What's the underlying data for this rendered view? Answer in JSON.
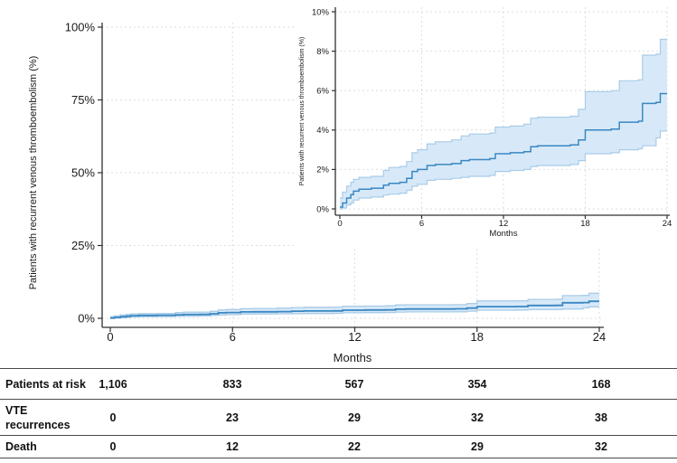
{
  "colors": {
    "curve_line": "#3a87c2",
    "ci_fill": "#d7e9f8",
    "ci_edge": "#a9cce8",
    "grid": "#dedede",
    "axis": "#303030",
    "text": "#1a1a1a",
    "table_border": "#4a4a4a"
  },
  "chart_data": [
    {
      "id": "main-chart",
      "type": "line",
      "subtype": "step-cumulative-incidence-with-95ci",
      "title": "",
      "xlabel": "Months",
      "ylabel": "Patients with recurrent venous thromboembolism (%)",
      "xlim": [
        0,
        24
      ],
      "ylim": [
        0,
        100
      ],
      "xticks": [
        0,
        6,
        12,
        18,
        24
      ],
      "yticks": [
        0,
        25,
        50,
        75,
        100
      ],
      "ytick_suffix": "%",
      "grid": "dashed",
      "legend": "none",
      "series": [
        {
          "name": "cumulative-incidence-estimate",
          "x": [
            0,
            0.2,
            0.5,
            0.8,
            1.0,
            1.4,
            2.3,
            3.2,
            3.6,
            4.4,
            4.9,
            5.3,
            5.7,
            6.4,
            7.0,
            8.2,
            8.9,
            9.5,
            11.0,
            11.4,
            12.5,
            13.5,
            14.0,
            14.5,
            16.9,
            17.5,
            18.0,
            19.9,
            20.5,
            21.9,
            22.2,
            23.2,
            23.5,
            24
          ],
          "y": [
            0.09,
            0.3,
            0.55,
            0.72,
            0.9,
            1.0,
            1.05,
            1.2,
            1.3,
            1.35,
            1.55,
            1.9,
            2.0,
            2.2,
            2.25,
            2.3,
            2.45,
            2.5,
            2.55,
            2.8,
            2.85,
            2.9,
            3.15,
            3.2,
            3.25,
            3.5,
            4.0,
            4.05,
            4.4,
            4.45,
            5.35,
            5.4,
            5.85,
            5.85
          ]
        },
        {
          "name": "ci-95-upper",
          "x": [
            0,
            0.2,
            0.5,
            0.8,
            1.0,
            1.4,
            2.3,
            3.2,
            3.6,
            4.4,
            4.9,
            5.3,
            5.7,
            6.4,
            7.0,
            8.2,
            8.9,
            9.5,
            11.0,
            11.4,
            12.5,
            13.5,
            14.0,
            14.5,
            16.9,
            17.5,
            18.0,
            19.9,
            20.5,
            21.9,
            22.2,
            23.2,
            23.5,
            24
          ],
          "y": [
            0.55,
            0.85,
            1.15,
            1.35,
            1.5,
            1.6,
            1.65,
            1.95,
            2.1,
            2.15,
            2.4,
            2.85,
            3.0,
            3.3,
            3.4,
            3.5,
            3.7,
            3.8,
            3.85,
            4.15,
            4.2,
            4.3,
            4.6,
            4.65,
            4.7,
            5.05,
            5.95,
            6.0,
            6.5,
            6.55,
            7.8,
            7.85,
            8.6,
            8.6
          ]
        },
        {
          "name": "ci-95-lower",
          "x": [
            0,
            0.2,
            0.5,
            0.8,
            1.0,
            1.4,
            2.3,
            3.2,
            3.6,
            4.4,
            4.9,
            5.3,
            5.7,
            6.4,
            7.0,
            8.2,
            8.9,
            9.5,
            11.0,
            11.4,
            12.5,
            13.5,
            14.0,
            14.5,
            16.9,
            17.5,
            18.0,
            19.9,
            20.5,
            21.9,
            22.2,
            23.2,
            23.5,
            24
          ],
          "y": [
            0.0,
            0.05,
            0.2,
            0.3,
            0.45,
            0.55,
            0.6,
            0.7,
            0.75,
            0.8,
            0.95,
            1.15,
            1.25,
            1.45,
            1.5,
            1.55,
            1.6,
            1.65,
            1.7,
            1.9,
            1.95,
            2.0,
            2.15,
            2.2,
            2.25,
            2.45,
            2.8,
            2.85,
            3.0,
            3.05,
            3.2,
            3.6,
            3.95,
            3.95
          ]
        }
      ]
    },
    {
      "id": "inset-chart",
      "type": "line",
      "subtype": "step-cumulative-incidence-with-95ci",
      "title": "",
      "xlabel": "Months",
      "ylabel": "Patients with recurrent venous thromboembolism (%)",
      "xlim": [
        0,
        24
      ],
      "ylim": [
        0,
        10
      ],
      "xticks": [
        0,
        6,
        12,
        18,
        24
      ],
      "yticks": [
        0,
        2,
        4,
        6,
        8,
        10
      ],
      "ytick_suffix": "%",
      "grid": "dashed",
      "legend": "none",
      "note": "zoomed view of the same data as main-chart",
      "series_ref": 0
    }
  ],
  "risk_table": {
    "column_months": [
      0,
      6,
      12,
      18,
      24
    ],
    "rows": [
      {
        "label": "Patients at risk",
        "values": [
          "1,106",
          "833",
          "567",
          "354",
          "168"
        ]
      },
      {
        "label": "VTE recurrences",
        "values": [
          "0",
          "23",
          "29",
          "32",
          "38"
        ]
      },
      {
        "label": "Death",
        "values": [
          "0",
          "12",
          "22",
          "29",
          "32"
        ]
      }
    ]
  }
}
